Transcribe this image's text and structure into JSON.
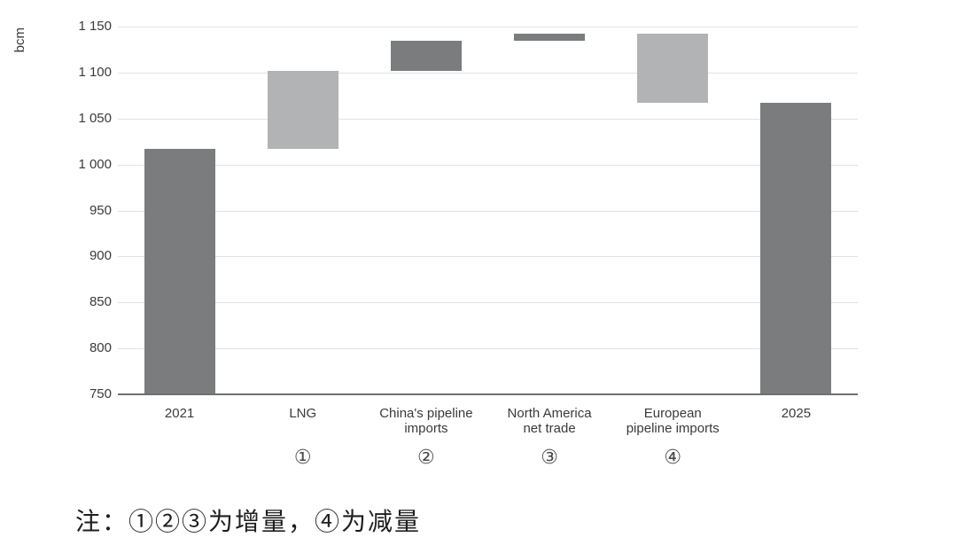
{
  "figure": {
    "note": "注：①②③为增量，④为减量"
  },
  "chart_data": {
    "type": "bar",
    "subtype": "waterfall",
    "title": "",
    "xlabel": "",
    "ylabel": "bcm",
    "ylim": [
      750,
      1150
    ],
    "ytick_step": 50,
    "grid": true,
    "legend": false,
    "yticks": [
      {
        "value": 1150,
        "label": "1 150"
      },
      {
        "value": 1100,
        "label": "1 100"
      },
      {
        "value": 1050,
        "label": "1 050"
      },
      {
        "value": 1000,
        "label": "1 000"
      },
      {
        "value": 950,
        "label": "950"
      },
      {
        "value": 900,
        "label": "900"
      },
      {
        "value": 850,
        "label": "850"
      },
      {
        "value": 800,
        "label": "800"
      },
      {
        "value": 750,
        "label": "750"
      }
    ],
    "categories": [
      "2021",
      "LNG",
      "China's pipeline imports",
      "North America net trade",
      "European pipeline imports",
      "2025"
    ],
    "category_label_lines": [
      [
        "2021"
      ],
      [
        "LNG"
      ],
      [
        "China's pipeline",
        "imports"
      ],
      [
        "North America",
        "net trade"
      ],
      [
        "European",
        "pipeline imports"
      ],
      [
        "2025"
      ]
    ],
    "markers": [
      "",
      "①",
      "②",
      "③",
      "④",
      ""
    ],
    "bars": [
      {
        "category": "2021",
        "kind": "total",
        "start": 750,
        "end": 1017,
        "value": 1017,
        "shade": "dark"
      },
      {
        "category": "LNG",
        "kind": "increase",
        "start": 1017,
        "end": 1102,
        "value": 85,
        "shade": "light"
      },
      {
        "category": "China's pipeline imports",
        "kind": "increase",
        "start": 1102,
        "end": 1135,
        "value": 33,
        "shade": "dark"
      },
      {
        "category": "North America net trade",
        "kind": "increase",
        "start": 1135,
        "end": 1142,
        "value": 7,
        "shade": "dark"
      },
      {
        "category": "European pipeline imports",
        "kind": "decrease",
        "start": 1142,
        "end": 1067,
        "value": -75,
        "shade": "light"
      },
      {
        "category": "2025",
        "kind": "total",
        "start": 750,
        "end": 1067,
        "value": 1067,
        "shade": "dark"
      }
    ],
    "colors": {
      "dark_bar": "#7a7c7e",
      "light_bar": "#b1b3b5",
      "gridline": "#e2e2e2",
      "axis_line": "#6d6f71",
      "text": "#3a3a3a"
    }
  }
}
